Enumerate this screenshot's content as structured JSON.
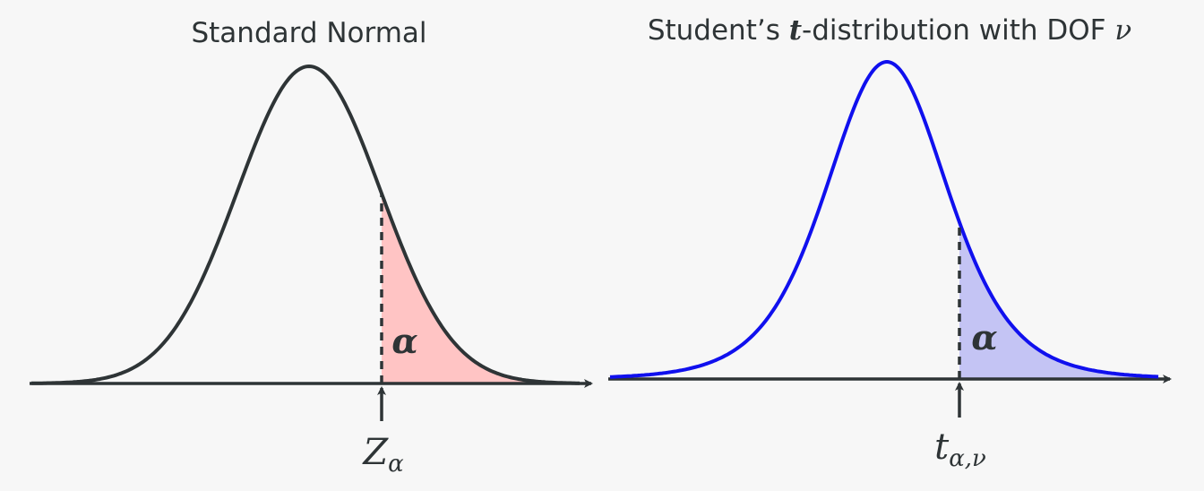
{
  "panels": {
    "normal": {
      "title": "Standard Normal",
      "tail_label": "α",
      "critical_main": "Z",
      "critical_sub": "α",
      "curve_color": "#2e3436",
      "fill_color": "#ffc4c4"
    },
    "student_t": {
      "title_pre": "Student’s ",
      "title_var": "t",
      "title_post": "-distribution with DOF ",
      "title_nu": "ν",
      "tail_label": "α",
      "critical_main": "t",
      "critical_sub": "α,ν",
      "curve_color": "#1010ee",
      "fill_color": "#c4c4f4"
    }
  },
  "colors": {
    "axis": "#2e3436",
    "background": "#f7f7f7"
  }
}
